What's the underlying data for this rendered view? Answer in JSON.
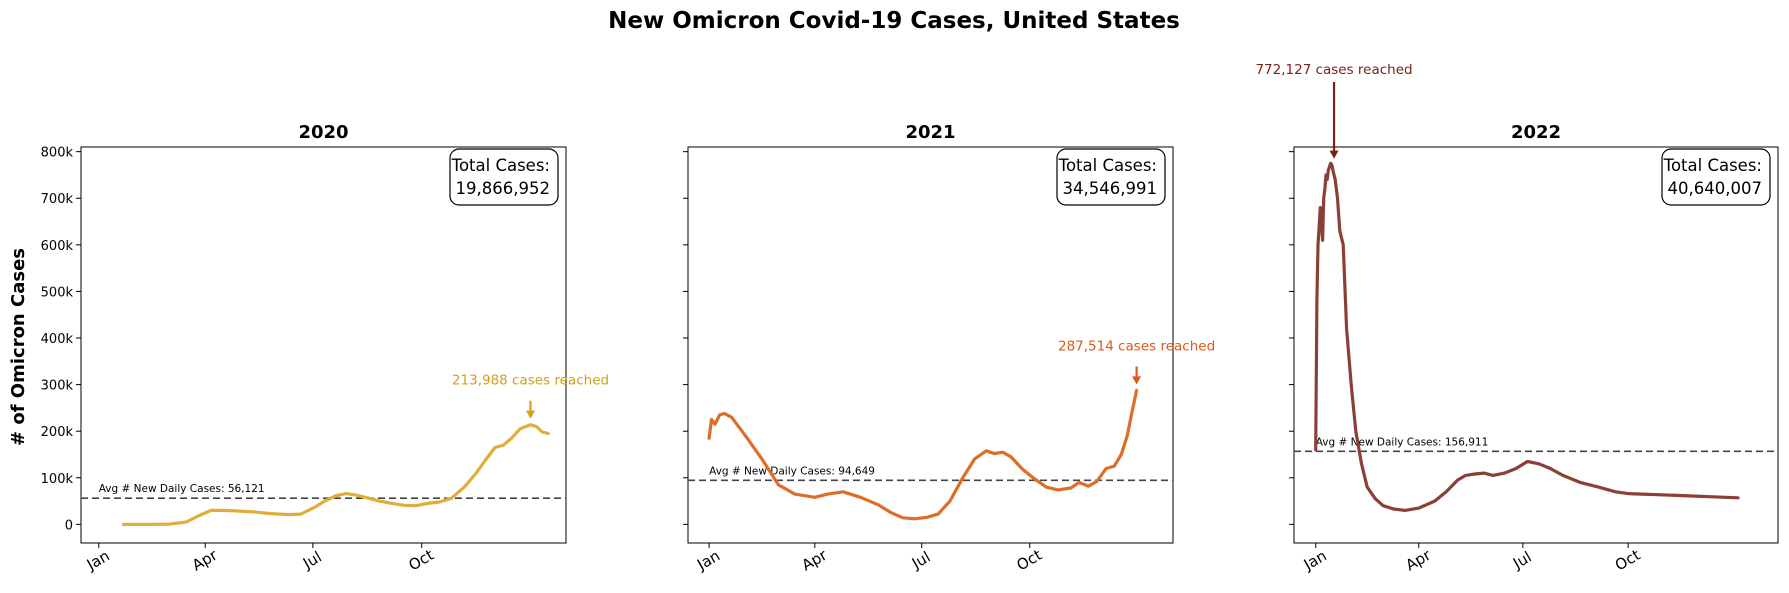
{
  "figure": {
    "suptitle": "New Omicron Covid-19 Cases, United States",
    "ylabel": "# of Omicron Cases",
    "y_ticks": [
      {
        "value": 0,
        "label": "0"
      },
      {
        "value": 100000,
        "label": "100k"
      },
      {
        "value": 200000,
        "label": "200k"
      },
      {
        "value": 300000,
        "label": "300k"
      },
      {
        "value": 400000,
        "label": "400k"
      },
      {
        "value": 500000,
        "label": "500k"
      },
      {
        "value": 600000,
        "label": "600k"
      },
      {
        "value": 700000,
        "label": "700k"
      },
      {
        "value": 800000,
        "label": "800k"
      }
    ],
    "x_ticks": [
      {
        "day": 0,
        "label": "Jan"
      },
      {
        "day": 90,
        "label": "Apr"
      },
      {
        "day": 181,
        "label": "Jul"
      },
      {
        "day": 273,
        "label": "Oct"
      }
    ],
    "colors": {
      "dashed_line": "#444444",
      "axes": "#000000"
    }
  },
  "chart_data": [
    {
      "type": "line",
      "title": "2020",
      "color": "#e0ad3a",
      "annotation_color": "#d4a017",
      "total_label": "Total Cases:",
      "total_value": "19,866,952",
      "avg_label": "Avg # New Daily Cases: 56,121",
      "avg_value": 56121,
      "peak_label": "213,988 cases reached",
      "peak": {
        "day": 365,
        "value": 213988
      },
      "ylim": [
        -40000,
        810000
      ],
      "xlim": [
        -15,
        395
      ],
      "x": [
        "2020-01-22",
        "2020-02-15",
        "2020-03-01",
        "2020-03-15",
        "2020-03-25",
        "2020-04-05",
        "2020-04-15",
        "2020-04-25",
        "2020-05-10",
        "2020-05-25",
        "2020-06-10",
        "2020-06-20",
        "2020-07-01",
        "2020-07-10",
        "2020-07-20",
        "2020-07-28",
        "2020-08-05",
        "2020-08-15",
        "2020-08-25",
        "2020-09-05",
        "2020-09-15",
        "2020-09-25",
        "2020-10-05",
        "2020-10-15",
        "2020-10-25",
        "2020-11-05",
        "2020-11-15",
        "2020-11-22",
        "2020-12-01",
        "2020-12-08",
        "2020-12-15",
        "2020-12-22",
        "2020-12-31",
        "2021-01-05",
        "2021-01-10",
        "2021-01-15"
      ],
      "y": [
        0,
        0,
        500,
        5000,
        18000,
        30000,
        30000,
        29000,
        27000,
        23000,
        21000,
        22000,
        36000,
        50000,
        62000,
        66000,
        63000,
        57000,
        50000,
        45000,
        41000,
        40000,
        45000,
        48000,
        56000,
        80000,
        110000,
        135000,
        165000,
        170000,
        185000,
        205000,
        214000,
        210000,
        198000,
        195000
      ]
    },
    {
      "type": "line",
      "title": "2021",
      "color": "#dc6e28",
      "annotation_color": "#e0561c",
      "total_label": "Total Cases:",
      "total_value": "34,546,991",
      "avg_label": "Avg # New Daily Cases: 94,649",
      "avg_value": 94649,
      "peak_label": "287,514 cases reached",
      "peak": {
        "day": 364,
        "value": 287514
      },
      "ylim": [
        -40000,
        810000
      ],
      "xlim": [
        -18,
        395
      ],
      "x": [
        "2021-01-01",
        "2021-01-03",
        "2021-01-06",
        "2021-01-10",
        "2021-01-14",
        "2021-01-20",
        "2021-02-01",
        "2021-02-15",
        "2021-03-01",
        "2021-03-15",
        "2021-04-01",
        "2021-04-12",
        "2021-04-25",
        "2021-05-10",
        "2021-05-25",
        "2021-06-05",
        "2021-06-15",
        "2021-06-25",
        "2021-07-05",
        "2021-07-15",
        "2021-07-25",
        "2021-08-05",
        "2021-08-15",
        "2021-08-25",
        "2021-09-01",
        "2021-09-08",
        "2021-09-15",
        "2021-09-25",
        "2021-10-05",
        "2021-10-15",
        "2021-10-25",
        "2021-11-05",
        "2021-11-12",
        "2021-11-20",
        "2021-11-27",
        "2021-12-05",
        "2021-12-12",
        "2021-12-18",
        "2021-12-23",
        "2021-12-27",
        "2021-12-31"
      ],
      "y": [
        185000,
        225000,
        215000,
        235000,
        238000,
        230000,
        190000,
        140000,
        85000,
        65000,
        58000,
        65000,
        70000,
        58000,
        42000,
        25000,
        14000,
        12000,
        15000,
        22000,
        50000,
        100000,
        140000,
        158000,
        152000,
        155000,
        145000,
        118000,
        98000,
        80000,
        74000,
        78000,
        90000,
        82000,
        92000,
        120000,
        125000,
        150000,
        190000,
        240000,
        287514
      ]
    },
    {
      "type": "line",
      "title": "2022",
      "color": "#8b4037",
      "annotation_color": "#7a1f16",
      "total_label": "Total Cases:",
      "total_value": "40,640,007",
      "avg_label": "Avg # New Daily Cases: 156,911",
      "avg_value": 156911,
      "peak_label": "772,127 cases reached",
      "peak": {
        "day": 16,
        "value": 772127
      },
      "ylim": [
        -40000,
        810000
      ],
      "xlim": [
        -19,
        404
      ],
      "x": [
        "2022-01-01",
        "2022-01-02",
        "2022-01-03",
        "2022-01-05",
        "2022-01-07",
        "2022-01-08",
        "2022-01-09",
        "2022-01-10",
        "2022-01-11",
        "2022-01-12",
        "2022-01-14",
        "2022-01-15",
        "2022-01-16",
        "2022-01-18",
        "2022-01-20",
        "2022-01-22",
        "2022-01-25",
        "2022-01-28",
        "2022-02-01",
        "2022-02-05",
        "2022-02-10",
        "2022-02-15",
        "2022-02-22",
        "2022-03-01",
        "2022-03-10",
        "2022-03-20",
        "2022-04-01",
        "2022-04-15",
        "2022-04-25",
        "2022-05-05",
        "2022-05-12",
        "2022-05-20",
        "2022-05-28",
        "2022-06-05",
        "2022-06-15",
        "2022-06-25",
        "2022-07-05",
        "2022-07-15",
        "2022-07-25",
        "2022-08-05",
        "2022-08-20",
        "2022-09-05",
        "2022-09-20",
        "2022-10-01",
        "2022-11-15",
        "2023-01-05"
      ],
      "y": [
        160000,
        480000,
        600000,
        680000,
        610000,
        700000,
        720000,
        750000,
        740000,
        760000,
        775000,
        772127,
        760000,
        740000,
        700000,
        630000,
        600000,
        420000,
        300000,
        200000,
        130000,
        80000,
        55000,
        40000,
        33000,
        30000,
        35000,
        50000,
        70000,
        95000,
        105000,
        108000,
        110000,
        105000,
        110000,
        120000,
        135000,
        130000,
        120000,
        105000,
        90000,
        80000,
        70000,
        66000,
        62000,
        57000
      ]
    }
  ]
}
